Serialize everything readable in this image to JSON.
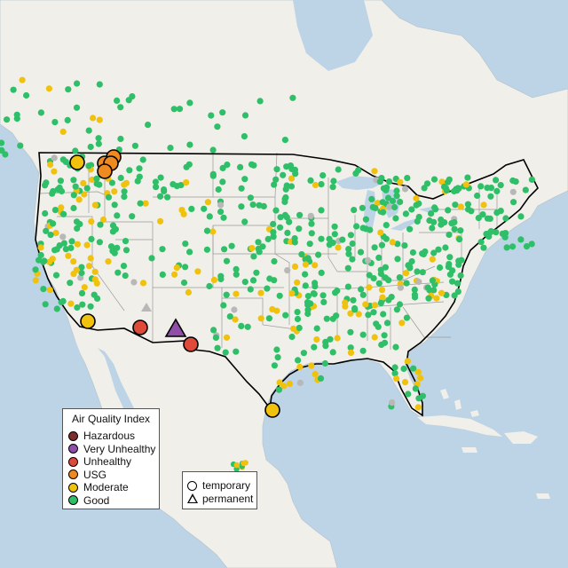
{
  "map": {
    "colors": {
      "water": "#bcd4e6",
      "land": "#f0efe9",
      "state_border": "#9a9a9a",
      "country_border": "#000000",
      "sensor_other": "#b8b8b8"
    },
    "aqi_categories": [
      {
        "key": "hazardous",
        "label": "Hazardous",
        "color": "#7e2d2d"
      },
      {
        "key": "very_unhealthy",
        "label": "Very Unhealthy",
        "color": "#8f4fa8"
      },
      {
        "key": "unhealthy",
        "label": "Unhealthy",
        "color": "#e04a3a"
      },
      {
        "key": "usg",
        "label": "USG",
        "color": "#ee8a20"
      },
      {
        "key": "moderate",
        "label": "Moderate",
        "color": "#f0c20e"
      },
      {
        "key": "good",
        "label": "Good",
        "color": "#2fbf68"
      }
    ]
  },
  "legend": {
    "title": "Air Quality Index"
  },
  "shape_legend": {
    "temporary": "temporary",
    "permanent": "permanent"
  }
}
